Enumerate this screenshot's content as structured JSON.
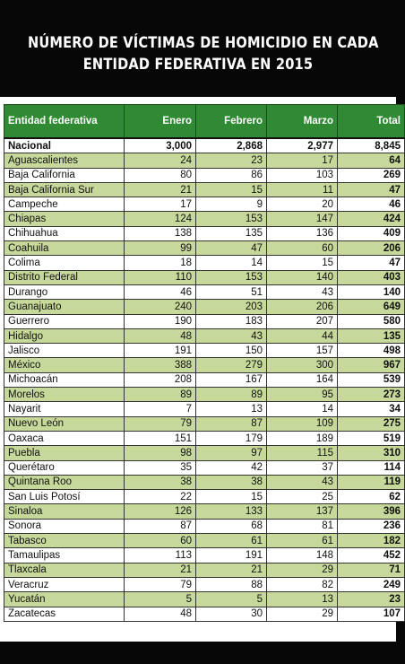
{
  "title": {
    "line1": "NÚMERO DE VÍCTIMAS DE HOMICIDIO EN CADA",
    "line2": "ENTIDAD FEDERATIVA EN 2015"
  },
  "colors": {
    "header": "#2f8a33",
    "stripe": "#c6d99a",
    "background": "#070707"
  },
  "table": {
    "headers": [
      "Entidad federativa",
      "Enero",
      "Febrero",
      "Marzo",
      "Total"
    ],
    "national": {
      "name": "Nacional",
      "enero": "3,000",
      "febrero": "2,868",
      "marzo": "2,977",
      "total": "8,845"
    },
    "rows": [
      {
        "name": "Aguascalientes",
        "enero": "24",
        "febrero": "23",
        "marzo": "17",
        "total": "64"
      },
      {
        "name": "Baja California",
        "enero": "80",
        "febrero": "86",
        "marzo": "103",
        "total": "269"
      },
      {
        "name": "Baja California Sur",
        "enero": "21",
        "febrero": "15",
        "marzo": "11",
        "total": "47"
      },
      {
        "name": "Campeche",
        "enero": "17",
        "febrero": "9",
        "marzo": "20",
        "total": "46"
      },
      {
        "name": "Chiapas",
        "enero": "124",
        "febrero": "153",
        "marzo": "147",
        "total": "424"
      },
      {
        "name": "Chihuahua",
        "enero": "138",
        "febrero": "135",
        "marzo": "136",
        "total": "409"
      },
      {
        "name": "Coahuila",
        "enero": "99",
        "febrero": "47",
        "marzo": "60",
        "total": "206"
      },
      {
        "name": "Colima",
        "enero": "18",
        "febrero": "14",
        "marzo": "15",
        "total": "47"
      },
      {
        "name": "Distrito Federal",
        "enero": "110",
        "febrero": "153",
        "marzo": "140",
        "total": "403"
      },
      {
        "name": "Durango",
        "enero": "46",
        "febrero": "51",
        "marzo": "43",
        "total": "140"
      },
      {
        "name": "Guanajuato",
        "enero": "240",
        "febrero": "203",
        "marzo": "206",
        "total": "649"
      },
      {
        "name": "Guerrero",
        "enero": "190",
        "febrero": "183",
        "marzo": "207",
        "total": "580"
      },
      {
        "name": "Hidalgo",
        "enero": "48",
        "febrero": "43",
        "marzo": "44",
        "total": "135"
      },
      {
        "name": "Jalisco",
        "enero": "191",
        "febrero": "150",
        "marzo": "157",
        "total": "498"
      },
      {
        "name": "México",
        "enero": "388",
        "febrero": "279",
        "marzo": "300",
        "total": "967"
      },
      {
        "name": "Michoacán",
        "enero": "208",
        "febrero": "167",
        "marzo": "164",
        "total": "539"
      },
      {
        "name": "Morelos",
        "enero": "89",
        "febrero": "89",
        "marzo": "95",
        "total": "273"
      },
      {
        "name": "Nayarit",
        "enero": "7",
        "febrero": "13",
        "marzo": "14",
        "total": "34"
      },
      {
        "name": "Nuevo León",
        "enero": "79",
        "febrero": "87",
        "marzo": "109",
        "total": "275"
      },
      {
        "name": "Oaxaca",
        "enero": "151",
        "febrero": "179",
        "marzo": "189",
        "total": "519"
      },
      {
        "name": "Puebla",
        "enero": "98",
        "febrero": "97",
        "marzo": "115",
        "total": "310"
      },
      {
        "name": "Querétaro",
        "enero": "35",
        "febrero": "42",
        "marzo": "37",
        "total": "114"
      },
      {
        "name": "Quintana Roo",
        "enero": "38",
        "febrero": "38",
        "marzo": "43",
        "total": "119"
      },
      {
        "name": "San Luis Potosí",
        "enero": "22",
        "febrero": "15",
        "marzo": "25",
        "total": "62"
      },
      {
        "name": "Sinaloa",
        "enero": "126",
        "febrero": "133",
        "marzo": "137",
        "total": "396"
      },
      {
        "name": "Sonora",
        "enero": "87",
        "febrero": "68",
        "marzo": "81",
        "total": "236"
      },
      {
        "name": "Tabasco",
        "enero": "60",
        "febrero": "61",
        "marzo": "61",
        "total": "182"
      },
      {
        "name": "Tamaulipas",
        "enero": "113",
        "febrero": "191",
        "marzo": "148",
        "total": "452"
      },
      {
        "name": "Tlaxcala",
        "enero": "21",
        "febrero": "21",
        "marzo": "29",
        "total": "71"
      },
      {
        "name": "Veracruz",
        "enero": "79",
        "febrero": "88",
        "marzo": "82",
        "total": "249"
      },
      {
        "name": "Yucatán",
        "enero": "5",
        "febrero": "5",
        "marzo": "13",
        "total": "23"
      },
      {
        "name": "Zacatecas",
        "enero": "48",
        "febrero": "30",
        "marzo": "29",
        "total": "107"
      }
    ]
  }
}
